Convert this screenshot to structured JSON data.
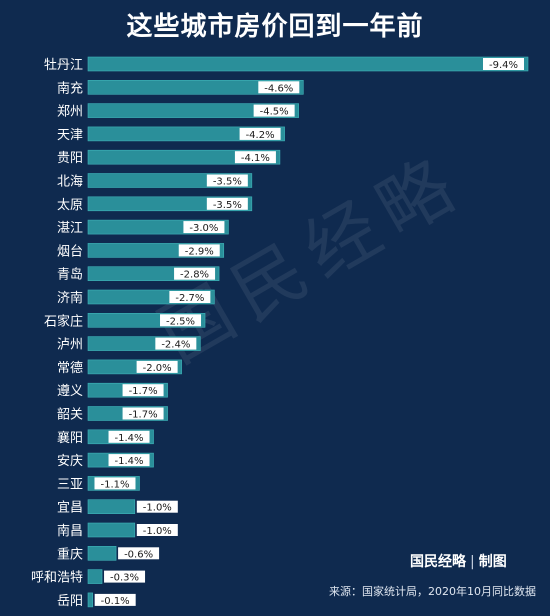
{
  "title": "这些城市房价回到一年前",
  "watermark": "国民经略",
  "credit": {
    "brand": "国民经略",
    "sep": "|",
    "label": "制图"
  },
  "source": "来源：国家统计局，2020年10月同比数据",
  "colors": {
    "background": "#0f2a4f",
    "bar": "#2a8f9a",
    "bar_edge": "#3fb3b9",
    "label_box": "#ffffff"
  },
  "chart_data": {
    "type": "bar",
    "orientation": "horizontal",
    "categories": [
      "牡丹江",
      "南充",
      "郑州",
      "天津",
      "贵阳",
      "北海",
      "太原",
      "湛江",
      "烟台",
      "青岛",
      "济南",
      "石家庄",
      "泸州",
      "常德",
      "遵义",
      "韶关",
      "襄阳",
      "安庆",
      "三亚",
      "宜昌",
      "南昌",
      "重庆",
      "呼和浩特",
      "岳阳"
    ],
    "values": [
      -9.4,
      -4.6,
      -4.5,
      -4.2,
      -4.1,
      -3.5,
      -3.5,
      -3.0,
      -2.9,
      -2.8,
      -2.7,
      -2.5,
      -2.4,
      -2.0,
      -1.7,
      -1.7,
      -1.4,
      -1.4,
      -1.1,
      -1.0,
      -1.0,
      -0.6,
      -0.3,
      -0.1
    ],
    "data_labels": [
      "-9.4%",
      "-4.6%",
      "-4.5%",
      "-4.2%",
      "-4.1%",
      "-3.5%",
      "-3.5%",
      "-3.0%",
      "-2.9%",
      "-2.8%",
      "-2.7%",
      "-2.5%",
      "-2.4%",
      "-2.0%",
      "-1.7%",
      "-1.7%",
      "-1.4%",
      "-1.4%",
      "-1.1%",
      "-1.0%",
      "-1.0%",
      "-0.6%",
      "-0.3%",
      "-0.1%"
    ],
    "title": "这些城市房价回到一年前",
    "grid": false,
    "legend": "none"
  }
}
